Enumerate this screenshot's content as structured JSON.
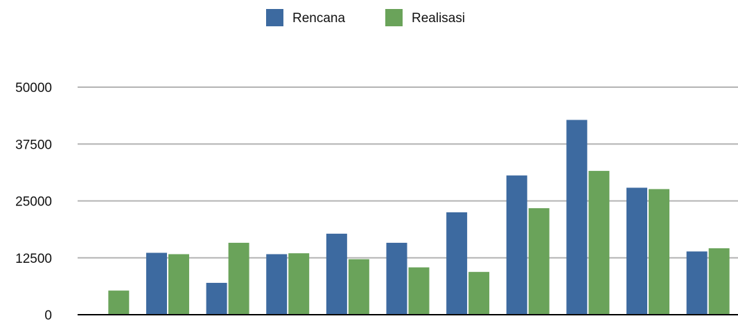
{
  "chart_data": {
    "type": "bar",
    "title": "",
    "xlabel": "",
    "ylabel": "",
    "categories": [
      "",
      "",
      "",
      "",
      "",
      "",
      "",
      "",
      "",
      "",
      ""
    ],
    "series": [
      {
        "name": "Rencana",
        "color": "#3d6aa0",
        "values": [
          0,
          13600,
          7000,
          13300,
          17800,
          15800,
          22500,
          30600,
          42800,
          27900,
          13900
        ]
      },
      {
        "name": "Realisasi",
        "color": "#6aa35a",
        "values": [
          5300,
          13300,
          15800,
          13500,
          12200,
          10400,
          9400,
          23400,
          31600,
          27600,
          14600
        ]
      }
    ],
    "ylim": [
      0,
      50000
    ],
    "yticks": [
      "0",
      "12500",
      "25000",
      "37500",
      "50000"
    ],
    "grid": true,
    "legend_position": "top-center",
    "gridline_color": "#b3b3b3",
    "axis_color": "#000000"
  }
}
